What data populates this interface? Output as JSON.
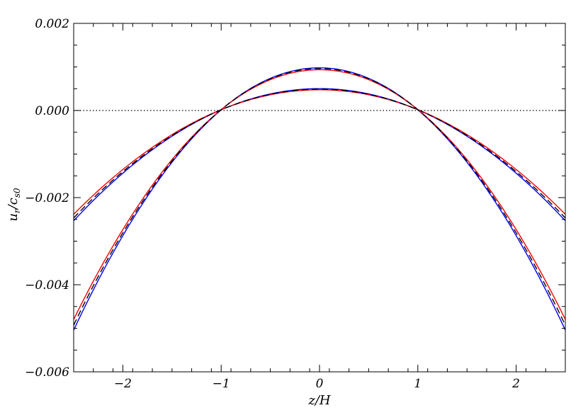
{
  "chart_data": {
    "type": "line",
    "xlabel": "z/H",
    "ylabel_main": "u",
    "ylabel_main_sub": "r",
    "ylabel_den": "c",
    "ylabel_den_sub": "s0",
    "xlim": [
      -2.5,
      2.5
    ],
    "ylim": [
      -0.006,
      0.002
    ],
    "x_ticks": [
      -2,
      -1,
      0,
      1,
      2
    ],
    "x_tick_labels": [
      "−2",
      "−1",
      "0",
      "1",
      "2"
    ],
    "y_ticks": [
      0.002,
      0.0,
      -0.002,
      -0.004,
      -0.006
    ],
    "y_tick_labels": [
      "0.002",
      "0.000",
      "−0.002",
      "−0.004",
      "−0.006"
    ],
    "x_minor_step": 0.2,
    "y_minor_step": 0.0005,
    "grid": false,
    "reference_line": {
      "y": 0.0,
      "style": "dotted",
      "color": "#000000"
    },
    "series": [
      {
        "group": "A",
        "color": "#0000ff",
        "dash": "solid",
        "x": [
          -2.5,
          -2,
          -1.5,
          -1,
          -0.5,
          0,
          0.5,
          1,
          1.5,
          2,
          2.5
        ],
        "y": [
          -0.0026,
          -0.00135,
          -0.00055,
          0.0,
          0.00035,
          0.00047,
          0.00035,
          0.0,
          -0.00055,
          -0.00135,
          -0.0026
        ]
      },
      {
        "group": "A",
        "color": "#ff0000",
        "dash": "solid",
        "x": [
          -2.5,
          -2,
          -1.5,
          -1,
          -0.5,
          0,
          0.5,
          1,
          1.5,
          2,
          2.5
        ],
        "y": [
          -0.00242,
          -0.0013,
          -0.00054,
          0.0,
          0.00035,
          0.00047,
          0.00035,
          0.0,
          -0.00054,
          -0.0013,
          -0.00242
        ]
      },
      {
        "group": "A",
        "color": "#000000",
        "dash": "dashed",
        "x": [
          -2.5,
          -2,
          -1.5,
          -1,
          -0.5,
          0,
          0.5,
          1,
          1.5,
          2,
          2.5
        ],
        "y": [
          -0.00252,
          -0.00133,
          -0.00055,
          0.0,
          0.00035,
          0.00047,
          0.00035,
          0.0,
          -0.00055,
          -0.00133,
          -0.00252
        ]
      },
      {
        "group": "B",
        "color": "#0000ff",
        "dash": "solid",
        "x": [
          -2.5,
          -2,
          -1.5,
          -1,
          -0.5,
          0,
          0.5,
          1,
          1.5,
          2,
          2.5
        ],
        "y": [
          -0.00513,
          -0.00275,
          -0.00115,
          0.0,
          0.0007,
          0.00094,
          0.0007,
          0.0,
          -0.00115,
          -0.00275,
          -0.00513
        ]
      },
      {
        "group": "B",
        "color": "#ff0000",
        "dash": "solid",
        "x": [
          -2.5,
          -2,
          -1.5,
          -1,
          -0.5,
          0,
          0.5,
          1,
          1.5,
          2,
          2.5
        ],
        "y": [
          -0.00485,
          -0.00265,
          -0.00112,
          0.0,
          0.00069,
          0.00093,
          0.00069,
          0.0,
          -0.00112,
          -0.00265,
          -0.00485
        ]
      },
      {
        "group": "B",
        "color": "#000000",
        "dash": "dashed",
        "x": [
          -2.5,
          -2,
          -1.5,
          -1,
          -0.5,
          0,
          0.5,
          1,
          1.5,
          2,
          2.5
        ],
        "y": [
          -0.005,
          -0.0027,
          -0.00114,
          0.0,
          0.0007,
          0.00094,
          0.0007,
          0.0,
          -0.00114,
          -0.0027,
          -0.005
        ]
      }
    ]
  }
}
